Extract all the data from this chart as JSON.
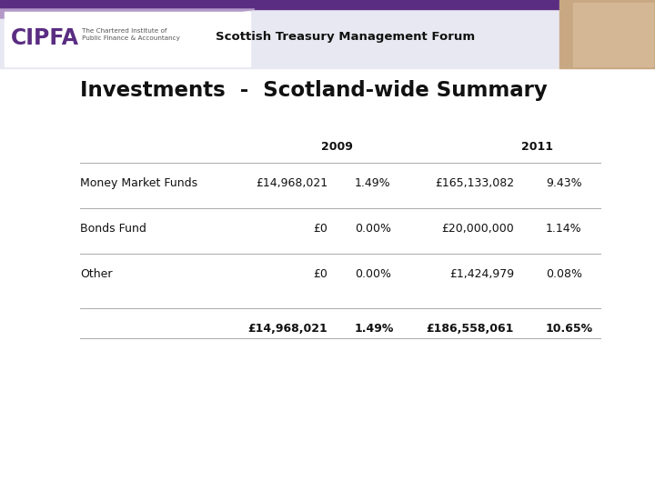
{
  "header_text": "Scottish Treasury Management Forum",
  "title": "Investments  -  Scotland-wide Summary",
  "col_headers": [
    "2009",
    "2011"
  ],
  "rows": [
    {
      "label": "Money Market Funds",
      "val2009": "£14,968,021",
      "pct2009": "1.49%",
      "val2011": "£165,133,082",
      "pct2011": "9.43%",
      "bold": false
    },
    {
      "label": "Bonds Fund",
      "val2009": "£0",
      "pct2009": "0.00%",
      "val2011": "£20,000,000",
      "pct2011": "1.14%",
      "bold": false
    },
    {
      "label": "Other",
      "val2009": "£0",
      "pct2009": "0.00%",
      "val2011": "£1,424,979",
      "pct2011": "0.08%",
      "bold": false
    },
    {
      "label": "",
      "val2009": "£14,968,021",
      "pct2009": "1.49%",
      "val2011": "£186,558,061",
      "pct2011": "10.65%",
      "bold": true
    }
  ],
  "purple_dark": "#5a2d82",
  "purple_light": "#b399c8",
  "header_bg": "#e8e8f2",
  "cipfa_purple": "#5a2d82",
  "text_color": "#111111",
  "line_color": "#aaaaaa",
  "white": "#ffffff"
}
